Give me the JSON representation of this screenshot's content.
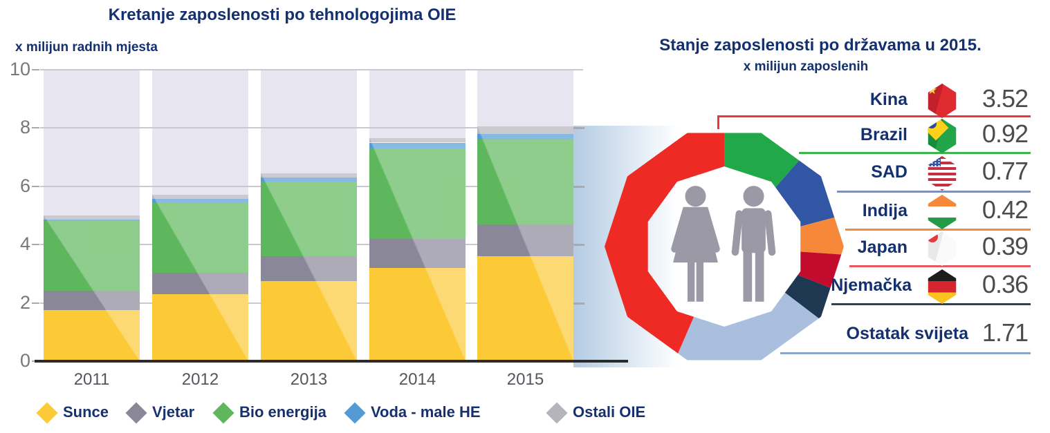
{
  "colors": {
    "title_navy": "#14306e",
    "axis_text": "#77777c",
    "x_text": "#55565c",
    "plot_bg_column": "#e7e5ef",
    "gridline": "#c9c7d2",
    "baseline": "#2b2b2b",
    "people_gray": "#9b99a6",
    "value_text": "#4c4c4e"
  },
  "legend": {
    "items": [
      {
        "label": "Sunce",
        "color": "#fcc937"
      },
      {
        "label": "Vjetar",
        "color": "#8a8799"
      },
      {
        "label": "Bio energija",
        "color": "#5eb75c"
      },
      {
        "label": "Voda - male HE",
        "color": "#549bd5"
      },
      {
        "label": "Ostali OIE",
        "color": "#b5b3bb"
      }
    ]
  },
  "chart_data": [
    {
      "type": "bar",
      "stacked": true,
      "title": "Kretanje zaposlenosti po tehnologojima OIE",
      "ylabel": "x milijun radnih mjesta",
      "xlabel": "",
      "categories": [
        "2011",
        "2012",
        "2013",
        "2014",
        "2015"
      ],
      "series": [
        {
          "name": "Sunce",
          "color": "#fcc937",
          "values": [
            1.75,
            2.3,
            2.75,
            3.2,
            3.6
          ]
        },
        {
          "name": "Vjetar",
          "color": "#8a8799",
          "values": [
            0.67,
            0.73,
            0.85,
            1.0,
            1.1
          ]
        },
        {
          "name": "Bio energija",
          "color": "#5eb75c",
          "values": [
            2.38,
            2.41,
            2.55,
            3.1,
            2.9
          ]
        },
        {
          "name": "Voda - male HE",
          "color": "#549bd5",
          "values": [
            0.05,
            0.12,
            0.15,
            0.2,
            0.2
          ]
        },
        {
          "name": "Ostali OIE",
          "color": "#b5b3bb",
          "values": [
            0.15,
            0.14,
            0.15,
            0.15,
            0.25
          ]
        }
      ],
      "totals": [
        5.0,
        5.7,
        6.45,
        7.65,
        8.05
      ],
      "ylim": [
        0,
        10
      ],
      "y_ticks": [
        10,
        8,
        6,
        4,
        2,
        0
      ],
      "grid": true,
      "legend_position": "bottom"
    },
    {
      "type": "pie",
      "shape": "decagon-ring",
      "title": "Stanje zaposlenosti po državama u 2015.",
      "unit_label": "x milijun zaposlenih",
      "categories": [
        "Kina",
        "Brazil",
        "SAD",
        "Indija",
        "Japan",
        "Njemačka",
        "Ostatak svijeta"
      ],
      "values": [
        3.52,
        0.92,
        0.77,
        0.42,
        0.39,
        0.36,
        1.71
      ],
      "display_values": [
        "3.52",
        "0.92",
        "0.77",
        "0.42",
        "0.39",
        "0.36",
        "1.71"
      ],
      "colors": [
        "#ee2a24",
        "#21a849",
        "#3156a4",
        "#f6883a",
        "#c30b2e",
        "#1d3850",
        "#aabfdd"
      ],
      "line_colors": [
        "#e8383d",
        "#3cb54a",
        "#7d8fbb",
        "#f6883a",
        "#e55a60",
        "#2c4257",
        "#8ba6c9"
      ],
      "flags": [
        "cn",
        "br",
        "us",
        "in",
        "jp",
        "de",
        null
      ],
      "legend_position": "right"
    }
  ]
}
